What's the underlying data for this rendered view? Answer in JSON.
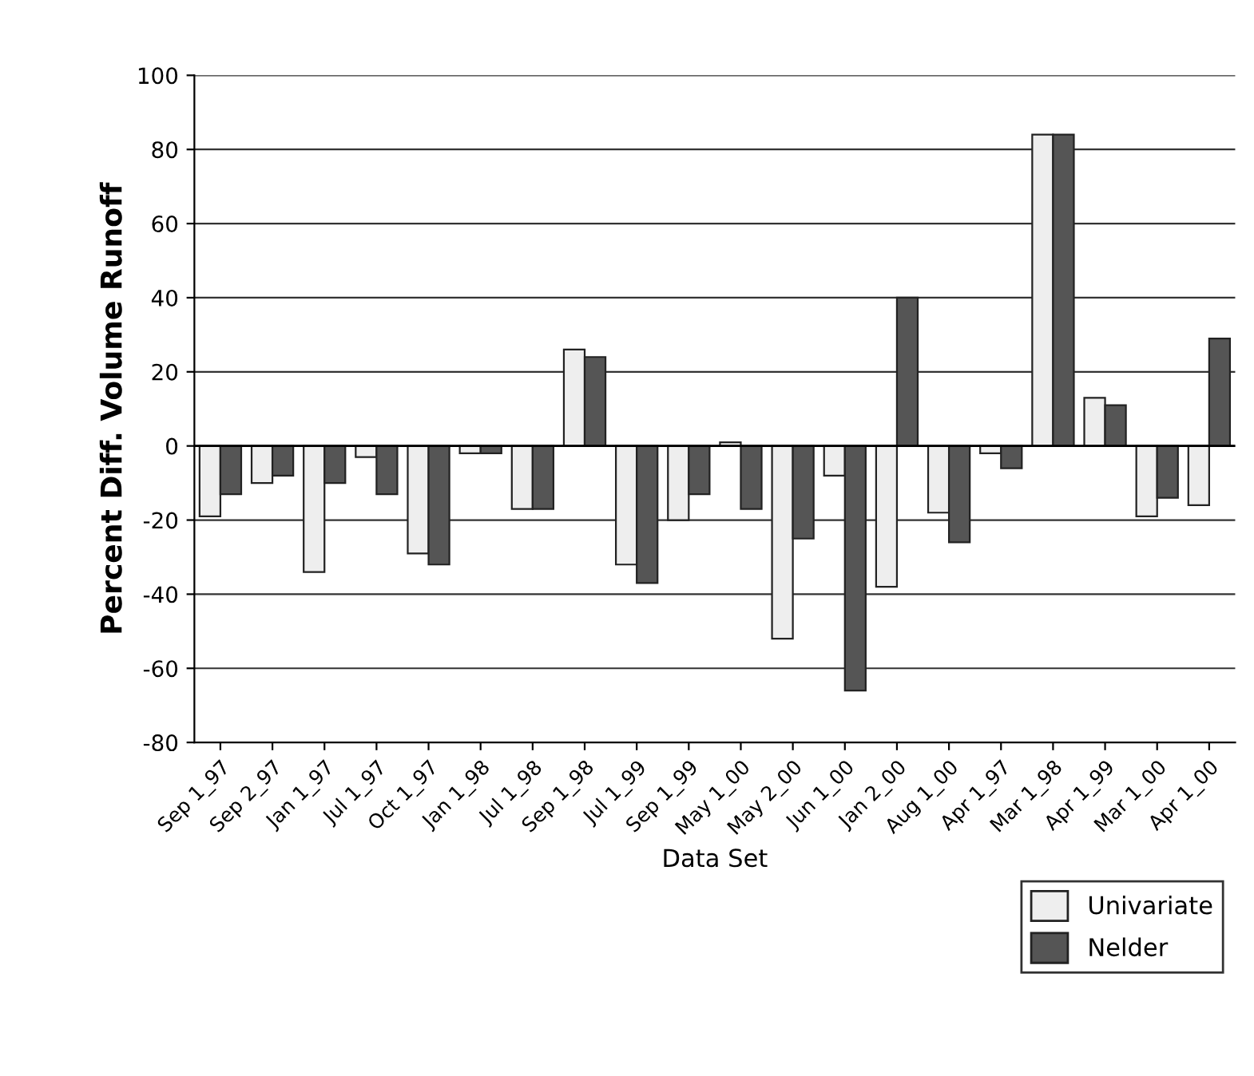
{
  "chart_data": {
    "type": "bar",
    "xlabel": "Data Set",
    "ylabel": "Percent Diff. Volume Runoff",
    "categories": [
      "Sep 1_97",
      "Sep 2_97",
      "Jan 1_97",
      "Jul 1_97",
      "Oct 1_97",
      "Jan 1_98",
      "Jul 1_98",
      "Sep 1_98",
      "Jul 1_99",
      "Sep 1_99",
      "May 1_00",
      "May 2_00",
      "Jun 1_00",
      "Jan 2_00",
      "Aug 1_00",
      "Apr 1_97",
      "Mar 1_98",
      "Apr 1_99",
      "Mar 1_00",
      "Apr 1_00"
    ],
    "series": [
      {
        "name": "Univariate",
        "color": "#eeeeee",
        "values": [
          -19,
          -10,
          -34,
          -3,
          -29,
          -2,
          -17,
          26,
          -32,
          -20,
          1,
          -52,
          -8,
          -38,
          -18,
          -2,
          84,
          13,
          -19,
          -16
        ]
      },
      {
        "name": "Nelder",
        "color": "#555555",
        "values": [
          -13,
          -8,
          -10,
          -13,
          -32,
          -2,
          -17,
          24,
          -37,
          -13,
          -17,
          -25,
          -66,
          40,
          -26,
          -6,
          84,
          11,
          -14,
          29
        ]
      }
    ],
    "ylim": [
      -80,
      100
    ],
    "yticks": [
      -80,
      -60,
      -40,
      -20,
      0,
      20,
      40,
      60,
      80,
      100
    ],
    "grid": "y",
    "legend": "bottom right"
  }
}
